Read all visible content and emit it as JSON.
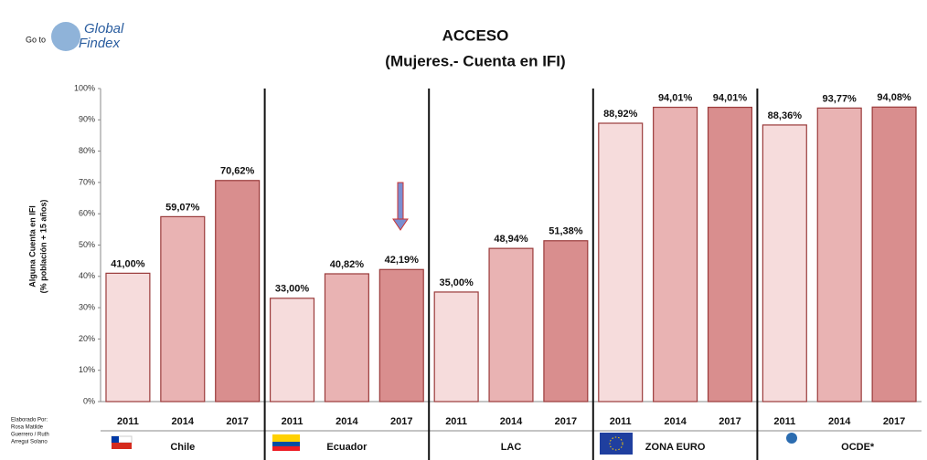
{
  "chart_data": {
    "type": "bar",
    "title": "ACCESO",
    "subtitle": "(Mujeres.- Cuenta en IFI)",
    "y_label": "Alguna Cuenta en IFI",
    "y_label_2": "(% población + 15 años)",
    "logo": [
      "Go to",
      "Global",
      "Findex"
    ],
    "footnote": [
      "Elaborado Por:",
      "Rosa Matilde",
      "Guerrero / Ruth",
      "Arregui Solano"
    ],
    "categories": [
      "2011",
      "2014",
      "2017"
    ],
    "colors": [
      "#f6dcdc",
      "#e9b3b3",
      "#d98e8e"
    ],
    "series": [
      {
        "name": "Chile",
        "values": [
          41.0,
          59.07,
          70.62
        ],
        "value_labels": [
          "41,00%",
          "59,07%",
          "70,62%"
        ]
      },
      {
        "name": "Ecuador",
        "values": [
          33.0,
          40.82,
          42.19
        ],
        "value_labels": [
          "33,00%",
          "40,82%",
          "42,19%"
        ]
      },
      {
        "name": "LAC",
        "values": [
          35.0,
          48.94,
          51.38
        ],
        "value_labels": [
          "35,00%",
          "48,94%",
          "51,38%"
        ]
      },
      {
        "name": "ZONA EURO",
        "values": [
          88.92,
          94.01,
          94.01
        ],
        "value_labels": [
          "88,92%",
          "94,01%",
          "94,01%"
        ]
      },
      {
        "name": "OCDE*",
        "values": [
          88.36,
          93.77,
          94.08
        ],
        "value_labels": [
          "88,36%",
          "93,77%",
          "94,08%"
        ]
      }
    ],
    "ylim": [
      0,
      100
    ],
    "yticks": [
      {
        "value": 0,
        "label": "0%"
      },
      {
        "value": 10,
        "label": "10%"
      },
      {
        "value": 20,
        "label": "20%"
      },
      {
        "value": 30,
        "label": "30%"
      },
      {
        "value": 40,
        "label": "40%"
      },
      {
        "value": 50,
        "label": "50%"
      },
      {
        "value": 60,
        "label": "60%"
      },
      {
        "value": 70,
        "label": "70%"
      },
      {
        "value": 80,
        "label": "80%"
      },
      {
        "value": 90,
        "label": "90%"
      },
      {
        "value": 100,
        "label": "100%"
      }
    ],
    "grid": false
  }
}
